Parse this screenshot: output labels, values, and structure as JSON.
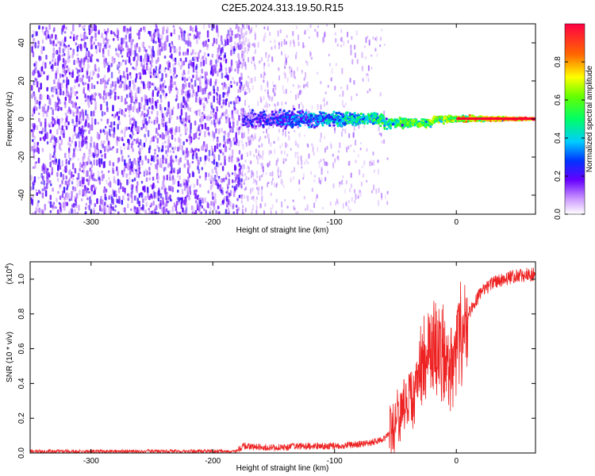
{
  "title": "C2E5.2024.313.19.50.R15",
  "colors": {
    "snr_line": "#ee2222",
    "ridge_low": "#5500ee",
    "ridge_high": "#ff0033"
  },
  "chart_data": [
    {
      "type": "heatmap",
      "xlabel": "Height of straight line (km)",
      "ylabel": "Frequency (Hz)",
      "xlim": [
        -350,
        65
      ],
      "ylim": [
        -50,
        50
      ],
      "xticks": [
        "-300",
        "-200",
        "-100",
        "0"
      ],
      "yticks": [
        "-40",
        "-20",
        "0",
        "20",
        "40"
      ],
      "grid": false,
      "colorbar": {
        "label": "Normalized spectral amplitude",
        "range": [
          0,
          1
        ],
        "ticks": [
          "0.0",
          "0.2",
          "0.4",
          "0.6",
          "0.8"
        ]
      },
      "regions": [
        {
          "x_range": [
            -350,
            -177
          ],
          "description_values": {
            "freq_range": [
              -50,
              50
            ],
            "amplitude": 0.15
          }
        },
        {
          "x_range": [
            -177,
            65
          ],
          "description_values": {
            "ridge_freq": 0,
            "amplitude_at_end": 1.0
          }
        }
      ]
    },
    {
      "type": "line",
      "xlabel": "Height of straight line (km)",
      "ylabel": "SNR (10 * v/v)",
      "y_multiplier": "(x10",
      "y_multiplier_exp": "4",
      "y_multiplier_close": ")",
      "xlim": [
        -350,
        65
      ],
      "ylim": [
        0,
        1.1
      ],
      "xticks": [
        "-300",
        "-200",
        "-100",
        "0"
      ],
      "yticks": [
        "0.0",
        "0.2",
        "0.4",
        "0.6",
        "0.8",
        "1.0"
      ],
      "grid": false,
      "series": [
        {
          "x": [
            -350,
            -300,
            -250,
            -200,
            -180,
            -175,
            -150,
            -120,
            -100,
            -80,
            -70,
            -60,
            -50,
            -45,
            -40,
            -35,
            -30,
            -25,
            -20,
            -15,
            -10,
            -5,
            0,
            10,
            20,
            30,
            40,
            50,
            65
          ],
          "y": [
            0.01,
            0.01,
            0.01,
            0.01,
            0.01,
            0.04,
            0.03,
            0.04,
            0.04,
            0.05,
            0.06,
            0.08,
            0.15,
            0.25,
            0.3,
            0.3,
            0.5,
            0.55,
            0.6,
            0.6,
            0.55,
            0.5,
            0.55,
            0.8,
            0.92,
            0.98,
            1.0,
            1.02,
            1.03
          ]
        }
      ]
    }
  ]
}
